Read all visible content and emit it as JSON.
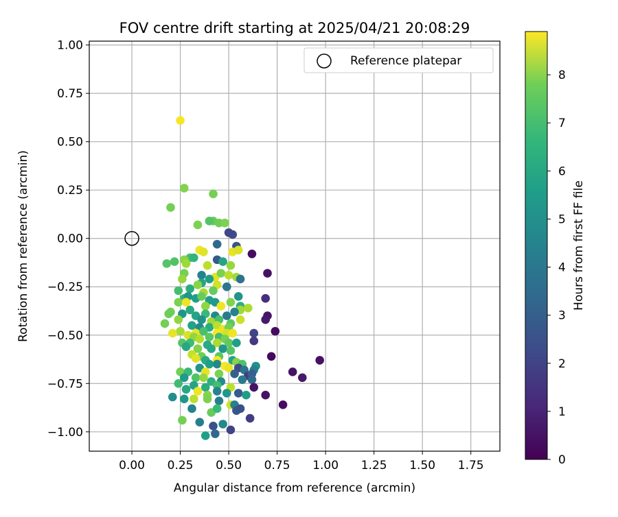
{
  "chart_data": {
    "type": "scatter",
    "title": "FOV centre drift starting at 2025/04/21 20:08:29",
    "xlabel": "Angular distance from reference (arcmin)",
    "ylabel": "Rotation from reference (arcmin)",
    "xlim": [
      -0.22,
      1.9
    ],
    "ylim": [
      -1.1,
      1.02
    ],
    "xticks": [
      "0.00",
      "0.25",
      "0.50",
      "0.75",
      "1.00",
      "1.25",
      "1.50",
      "1.75"
    ],
    "yticks": [
      "1.00",
      "0.75",
      "0.50",
      "0.25",
      "0.00",
      "−0.25",
      "−0.50",
      "−0.75",
      "−1.00"
    ],
    "grid": true,
    "legend": {
      "label": "Reference platepar",
      "placement": "top-right"
    },
    "reference_point": {
      "x": 0.0,
      "y": 0.0
    },
    "colorbar": {
      "label": "Hours from first FF file",
      "min": 0,
      "max": 8.9,
      "ticks": [
        "0",
        "1",
        "2",
        "3",
        "4",
        "5",
        "6",
        "7",
        "8"
      ],
      "colormap": "viridis"
    },
    "points": [
      [
        0.25,
        0.61,
        8.8
      ],
      [
        0.27,
        0.26,
        7.2
      ],
      [
        0.42,
        0.23,
        7.0
      ],
      [
        0.2,
        0.16,
        7.0
      ],
      [
        0.34,
        0.07,
        7.1
      ],
      [
        0.42,
        0.09,
        6.8
      ],
      [
        0.45,
        0.08,
        6.9
      ],
      [
        0.48,
        0.08,
        7.1
      ],
      [
        0.4,
        0.09,
        6.5
      ],
      [
        0.52,
        0.02,
        2.0
      ],
      [
        0.5,
        0.03,
        1.9
      ],
      [
        0.44,
        -0.03,
        3.0
      ],
      [
        0.54,
        -0.04,
        2.3
      ],
      [
        0.62,
        -0.08,
        0.3
      ],
      [
        0.35,
        -0.06,
        8.7
      ],
      [
        0.37,
        -0.07,
        8.5
      ],
      [
        0.52,
        -0.07,
        8.6
      ],
      [
        0.55,
        -0.06,
        8.4
      ],
      [
        0.3,
        -0.1,
        6.2
      ],
      [
        0.18,
        -0.13,
        6.5
      ],
      [
        0.22,
        -0.12,
        6.4
      ],
      [
        0.27,
        -0.11,
        7.3
      ],
      [
        0.28,
        -0.13,
        7.6
      ],
      [
        0.32,
        -0.1,
        5.8
      ],
      [
        0.44,
        -0.11,
        2.5
      ],
      [
        0.39,
        -0.14,
        8.0
      ],
      [
        0.47,
        -0.12,
        5.2
      ],
      [
        0.51,
        -0.14,
        7.5
      ],
      [
        0.7,
        -0.18,
        0.4
      ],
      [
        0.27,
        -0.18,
        7.0
      ],
      [
        0.26,
        -0.21,
        7.5
      ],
      [
        0.36,
        -0.19,
        4.0
      ],
      [
        0.43,
        -0.2,
        8.5
      ],
      [
        0.46,
        -0.18,
        7.1
      ],
      [
        0.5,
        -0.19,
        8.0
      ],
      [
        0.54,
        -0.2,
        7.6
      ],
      [
        0.56,
        -0.21,
        3.4
      ],
      [
        0.36,
        -0.23,
        5.2
      ],
      [
        0.4,
        -0.21,
        5.0
      ],
      [
        0.44,
        -0.24,
        8.3
      ],
      [
        0.49,
        -0.25,
        3.5
      ],
      [
        0.24,
        -0.27,
        6.2
      ],
      [
        0.3,
        -0.26,
        5.5
      ],
      [
        0.34,
        -0.24,
        7.3
      ],
      [
        0.37,
        -0.28,
        7.7
      ],
      [
        0.42,
        -0.27,
        6.8
      ],
      [
        0.27,
        -0.31,
        5.6
      ],
      [
        0.29,
        -0.3,
        4.6
      ],
      [
        0.33,
        -0.31,
        5.0
      ],
      [
        0.36,
        -0.3,
        6.8
      ],
      [
        0.24,
        -0.33,
        7.1
      ],
      [
        0.28,
        -0.33,
        8.7
      ],
      [
        0.4,
        -0.32,
        5.0
      ],
      [
        0.43,
        -0.33,
        4.8
      ],
      [
        0.51,
        -0.33,
        7.2
      ],
      [
        0.55,
        -0.3,
        4.6
      ],
      [
        0.69,
        -0.31,
        1.2
      ],
      [
        0.38,
        -0.35,
        7.4
      ],
      [
        0.46,
        -0.35,
        8.7
      ],
      [
        0.56,
        -0.35,
        5.6
      ],
      [
        0.56,
        -0.37,
        7.6
      ],
      [
        0.6,
        -0.36,
        7.8
      ],
      [
        0.2,
        -0.38,
        7.0
      ],
      [
        0.19,
        -0.39,
        6.9
      ],
      [
        0.26,
        -0.39,
        4.6
      ],
      [
        0.3,
        -0.37,
        5.4
      ],
      [
        0.33,
        -0.4,
        5.2
      ],
      [
        0.38,
        -0.39,
        6.0
      ],
      [
        0.43,
        -0.4,
        4.2
      ],
      [
        0.49,
        -0.4,
        3.6
      ],
      [
        0.53,
        -0.38,
        4.0
      ],
      [
        0.7,
        -0.4,
        0.5
      ],
      [
        0.69,
        -0.42,
        0.6
      ],
      [
        0.24,
        -0.42,
        7.4
      ],
      [
        0.36,
        -0.42,
        4.5
      ],
      [
        0.41,
        -0.43,
        7.6
      ],
      [
        0.45,
        -0.42,
        6.3
      ],
      [
        0.51,
        -0.44,
        6.6
      ],
      [
        0.56,
        -0.42,
        8.2
      ],
      [
        0.17,
        -0.44,
        7.0
      ],
      [
        0.31,
        -0.45,
        5.1
      ],
      [
        0.35,
        -0.46,
        4.2
      ],
      [
        0.4,
        -0.46,
        5.5
      ],
      [
        0.44,
        -0.45,
        8.0
      ],
      [
        0.47,
        -0.47,
        8.6
      ],
      [
        0.5,
        -0.46,
        7.0
      ],
      [
        0.25,
        -0.48,
        7.7
      ],
      [
        0.21,
        -0.49,
        8.6
      ],
      [
        0.33,
        -0.49,
        8.6
      ],
      [
        0.37,
        -0.48,
        6.3
      ],
      [
        0.44,
        -0.49,
        8.8
      ],
      [
        0.49,
        -0.49,
        8.3
      ],
      [
        0.52,
        -0.49,
        8.7
      ],
      [
        0.63,
        -0.49,
        1.8
      ],
      [
        0.74,
        -0.48,
        0.3
      ],
      [
        0.29,
        -0.5,
        8.4
      ],
      [
        0.32,
        -0.51,
        7.4
      ],
      [
        0.35,
        -0.52,
        7.9
      ],
      [
        0.4,
        -0.51,
        6.6
      ],
      [
        0.45,
        -0.51,
        6.2
      ],
      [
        0.48,
        -0.52,
        7.0
      ],
      [
        0.26,
        -0.54,
        6.5
      ],
      [
        0.3,
        -0.54,
        6.1
      ],
      [
        0.39,
        -0.55,
        5.5
      ],
      [
        0.44,
        -0.54,
        7.8
      ],
      [
        0.5,
        -0.54,
        6.7
      ],
      [
        0.54,
        -0.54,
        5.0
      ],
      [
        0.63,
        -0.53,
        1.5
      ],
      [
        0.28,
        -0.56,
        5.3
      ],
      [
        0.34,
        -0.57,
        7.2
      ],
      [
        0.41,
        -0.57,
        5.3
      ],
      [
        0.47,
        -0.57,
        4.7
      ],
      [
        0.51,
        -0.58,
        6.5
      ],
      [
        0.31,
        -0.6,
        8.1
      ],
      [
        0.36,
        -0.61,
        6.9
      ],
      [
        0.45,
        -0.61,
        6.6
      ],
      [
        0.72,
        -0.61,
        0.2
      ],
      [
        0.33,
        -0.62,
        8.5
      ],
      [
        0.38,
        -0.63,
        5.4
      ],
      [
        0.44,
        -0.63,
        8.8
      ],
      [
        0.52,
        -0.63,
        5.2
      ],
      [
        0.4,
        -0.65,
        5.0
      ],
      [
        0.44,
        -0.65,
        4.2
      ],
      [
        0.48,
        -0.66,
        8.8
      ],
      [
        0.54,
        -0.64,
        7.3
      ],
      [
        0.57,
        -0.65,
        6.4
      ],
      [
        0.64,
        -0.66,
        4.5
      ],
      [
        0.97,
        -0.63,
        0.4
      ],
      [
        0.35,
        -0.67,
        4.6
      ],
      [
        0.5,
        -0.67,
        8.6
      ],
      [
        0.55,
        -0.67,
        2.0
      ],
      [
        0.58,
        -0.68,
        3.4
      ],
      [
        0.63,
        -0.68,
        3.8
      ],
      [
        0.25,
        -0.69,
        7.0
      ],
      [
        0.29,
        -0.69,
        6.0
      ],
      [
        0.38,
        -0.69,
        8.6
      ],
      [
        0.45,
        -0.7,
        7.1
      ],
      [
        0.53,
        -0.7,
        2.8
      ],
      [
        0.6,
        -0.71,
        1.6
      ],
      [
        0.62,
        -0.7,
        2.7
      ],
      [
        0.83,
        -0.69,
        0.5
      ],
      [
        0.27,
        -0.72,
        4.8
      ],
      [
        0.33,
        -0.72,
        6.4
      ],
      [
        0.37,
        -0.72,
        7.5
      ],
      [
        0.41,
        -0.74,
        5.6
      ],
      [
        0.46,
        -0.74,
        4.3
      ],
      [
        0.57,
        -0.73,
        3.6
      ],
      [
        0.62,
        -0.73,
        3.0
      ],
      [
        0.88,
        -0.72,
        0.6
      ],
      [
        0.24,
        -0.75,
        6.1
      ],
      [
        0.32,
        -0.76,
        5.2
      ],
      [
        0.38,
        -0.77,
        5.5
      ],
      [
        0.44,
        -0.76,
        6.2
      ],
      [
        0.51,
        -0.77,
        8.0
      ],
      [
        0.63,
        -0.77,
        0.5
      ],
      [
        0.28,
        -0.78,
        5.3
      ],
      [
        0.34,
        -0.79,
        8.7
      ],
      [
        0.39,
        -0.81,
        7.3
      ],
      [
        0.44,
        -0.79,
        4.0
      ],
      [
        0.49,
        -0.8,
        4.7
      ],
      [
        0.55,
        -0.8,
        2.6
      ],
      [
        0.59,
        -0.81,
        4.9
      ],
      [
        0.69,
        -0.81,
        0.4
      ],
      [
        0.21,
        -0.82,
        4.3
      ],
      [
        0.27,
        -0.83,
        4.7
      ],
      [
        0.32,
        -0.83,
        8.0
      ],
      [
        0.39,
        -0.83,
        7.1
      ],
      [
        0.45,
        -0.84,
        3.8
      ],
      [
        0.51,
        -0.86,
        8.3
      ],
      [
        0.53,
        -0.86,
        3.9
      ],
      [
        0.78,
        -0.86,
        0.3
      ],
      [
        0.31,
        -0.88,
        4.0
      ],
      [
        0.41,
        -0.9,
        6.8
      ],
      [
        0.44,
        -0.88,
        6.0
      ],
      [
        0.54,
        -0.89,
        2.4
      ],
      [
        0.56,
        -0.88,
        2.2
      ],
      [
        0.61,
        -0.93,
        1.6
      ],
      [
        0.26,
        -0.94,
        7.0
      ],
      [
        0.35,
        -0.95,
        3.8
      ],
      [
        0.42,
        -0.97,
        2.2
      ],
      [
        0.47,
        -0.96,
        4.2
      ],
      [
        0.51,
        -0.99,
        1.8
      ],
      [
        0.38,
        -1.02,
        5.0
      ],
      [
        0.43,
        -1.01,
        3.0
      ]
    ]
  }
}
